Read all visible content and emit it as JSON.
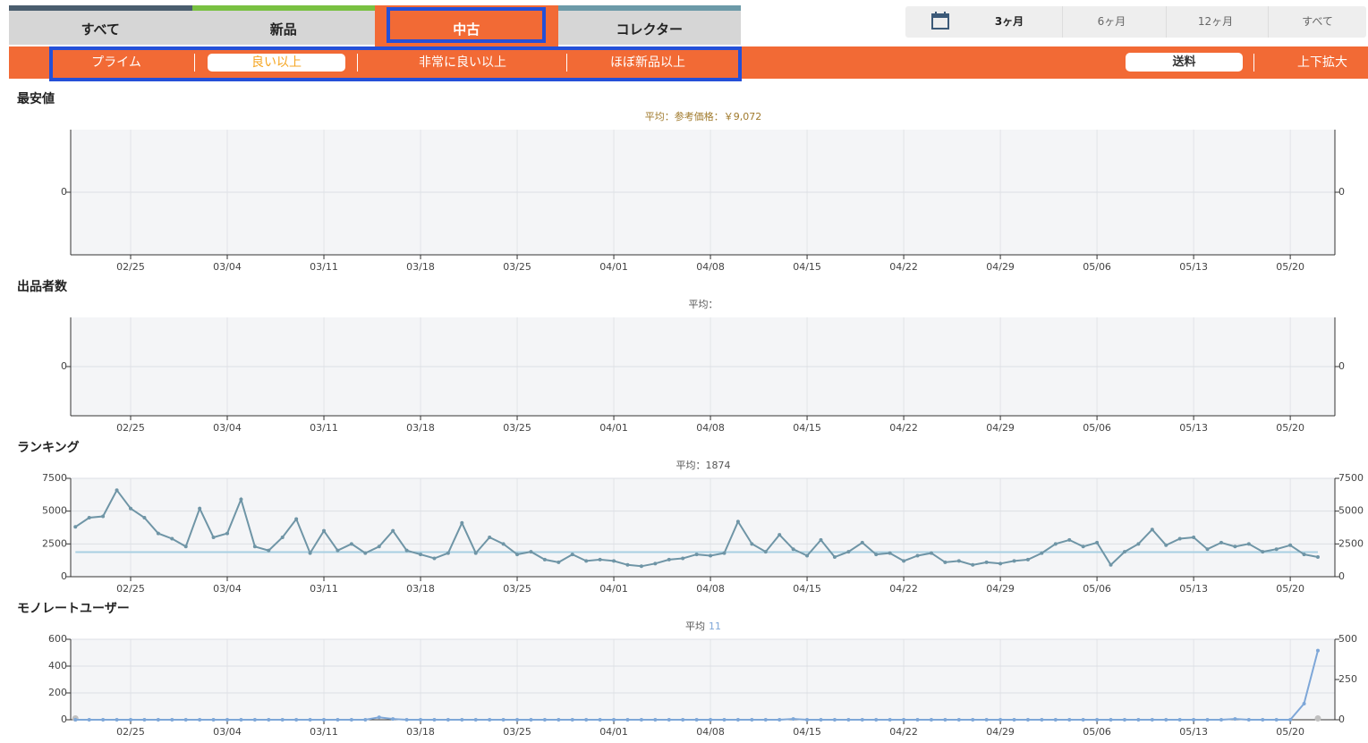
{
  "tabs": [
    "すべて",
    "新品",
    "中古",
    "コレクター"
  ],
  "periods": [
    "3ヶ月",
    "6ヶ月",
    "12ヶ月",
    "すべて"
  ],
  "filters": [
    "プライム",
    "良い以上",
    "非常に良い以上",
    "ほぼ新品以上"
  ],
  "options": [
    "送料",
    "上下拡大"
  ],
  "chart_data": [
    {
      "type": "line",
      "title": "最安値",
      "subtitle": "平均：参考価格：￥9,072",
      "xticks": [
        "02/25",
        "03/04",
        "03/11",
        "03/18",
        "03/25",
        "04/01",
        "04/08",
        "04/15",
        "04/22",
        "04/29",
        "05/06",
        "05/13",
        "05/20"
      ],
      "yticks": [
        0
      ],
      "y2ticks": [
        0
      ],
      "grid": true,
      "series": []
    },
    {
      "type": "line",
      "title": "出品者数",
      "subtitle": "平均：",
      "xticks": [
        "02/25",
        "03/04",
        "03/11",
        "03/18",
        "03/25",
        "04/01",
        "04/08",
        "04/15",
        "04/22",
        "04/29",
        "05/06",
        "05/13",
        "05/20"
      ],
      "yticks": [
        0
      ],
      "y2ticks": [
        0
      ],
      "grid": true,
      "series": []
    },
    {
      "type": "line",
      "title": "ランキング",
      "average_label": "平均：",
      "average": 1874,
      "average_color": "#a9d0e2",
      "xticks": [
        "02/25",
        "03/04",
        "03/11",
        "03/18",
        "03/25",
        "04/01",
        "04/08",
        "04/15",
        "04/22",
        "04/29",
        "05/06",
        "05/13",
        "05/20"
      ],
      "ylim": [
        0,
        7500
      ],
      "yticks": [
        0,
        2500,
        5000,
        7500
      ],
      "y2lim": [
        0,
        7500
      ],
      "y2ticks": [
        0,
        2500,
        5000,
        7500
      ],
      "grid": true,
      "series": [
        {
          "color": "#6f95a6",
          "x": [
            "02/21",
            "02/22",
            "02/23",
            "02/24",
            "02/25",
            "02/26",
            "02/27",
            "02/28",
            "03/01",
            "03/02",
            "03/03",
            "03/04",
            "03/05",
            "03/06",
            "03/07",
            "03/08",
            "03/09",
            "03/10",
            "03/11",
            "03/12",
            "03/13",
            "03/14",
            "03/15",
            "03/16",
            "03/17",
            "03/18",
            "03/19",
            "03/20",
            "03/21",
            "03/22",
            "03/23",
            "03/24",
            "03/25",
            "03/26",
            "03/27",
            "03/28",
            "03/29",
            "03/30",
            "03/31",
            "04/01",
            "04/02",
            "04/03",
            "04/04",
            "04/05",
            "04/06",
            "04/07",
            "04/08",
            "04/09",
            "04/10",
            "04/11",
            "04/12",
            "04/13",
            "04/14",
            "04/15",
            "04/16",
            "04/17",
            "04/18",
            "04/19",
            "04/20",
            "04/21",
            "04/22",
            "04/23",
            "04/24",
            "04/25",
            "04/26",
            "04/27",
            "04/28",
            "04/29",
            "04/30",
            "05/01",
            "05/02",
            "05/03",
            "05/04",
            "05/05",
            "05/06",
            "05/07",
            "05/08",
            "05/09",
            "05/10",
            "05/11",
            "05/12",
            "05/13",
            "05/14",
            "05/15",
            "05/16",
            "05/17",
            "05/18",
            "05/19",
            "05/20",
            "05/21",
            "05/22"
          ],
          "values": [
            3800,
            4500,
            4600,
            6600,
            5200,
            4500,
            3300,
            2900,
            2300,
            5200,
            3000,
            3300,
            5900,
            2300,
            2000,
            3000,
            4400,
            1800,
            3500,
            2000,
            2500,
            1800,
            2300,
            3500,
            2000,
            1700,
            1400,
            1800,
            4100,
            1800,
            3000,
            2500,
            1700,
            1900,
            1300,
            1100,
            1700,
            1200,
            1300,
            1200,
            900,
            800,
            1000,
            1300,
            1400,
            1700,
            1600,
            1800,
            4200,
            2500,
            1900,
            3200,
            2100,
            1600,
            2800,
            1500,
            1900,
            2600,
            1700,
            1800,
            1200,
            1600,
            1800,
            1100,
            1200,
            900,
            1100,
            1000,
            1200,
            1300,
            1800,
            2500,
            2800,
            2300,
            2600,
            900,
            1900,
            2500,
            3600,
            2400,
            2900,
            3000,
            2100,
            2600,
            2300,
            2500,
            1900,
            2100,
            2400,
            1700,
            1500
          ]
        }
      ]
    },
    {
      "type": "line",
      "title": "モノレートユーザー",
      "average_label": "平均",
      "average": 11,
      "average_color": "#7ea7d8",
      "xticks": [
        "02/25",
        "03/04",
        "03/11",
        "03/18",
        "03/25",
        "04/01",
        "04/08",
        "04/15",
        "04/22",
        "04/29",
        "05/06",
        "05/13",
        "05/20"
      ],
      "ylim": [
        0,
        600
      ],
      "yticks": [
        0,
        200,
        400,
        600
      ],
      "y2lim": [
        0,
        500
      ],
      "y2ticks": [
        0,
        250,
        500
      ],
      "grid": true,
      "series": [
        {
          "color": "#c0c0c0",
          "x": [
            "02/21",
            "05/22"
          ],
          "values": [
            10,
            10
          ]
        },
        {
          "color": "#7ea7d8",
          "axis": "y2",
          "x": [
            "02/21",
            "02/22",
            "02/23",
            "02/24",
            "02/25",
            "02/26",
            "02/27",
            "02/28",
            "03/01",
            "03/02",
            "03/03",
            "03/04",
            "03/05",
            "03/06",
            "03/07",
            "03/08",
            "03/09",
            "03/10",
            "03/11",
            "03/12",
            "03/13",
            "03/14",
            "03/15",
            "03/16",
            "03/17",
            "03/18",
            "03/19",
            "03/20",
            "03/21",
            "03/22",
            "03/23",
            "03/24",
            "03/25",
            "03/26",
            "03/27",
            "03/28",
            "03/29",
            "03/30",
            "03/31",
            "04/01",
            "04/02",
            "04/03",
            "04/04",
            "04/05",
            "04/06",
            "04/07",
            "04/08",
            "04/09",
            "04/10",
            "04/11",
            "04/12",
            "04/13",
            "04/14",
            "04/15",
            "04/16",
            "04/17",
            "04/18",
            "04/19",
            "04/20",
            "04/21",
            "04/22",
            "04/23",
            "04/24",
            "04/25",
            "04/26",
            "04/27",
            "04/28",
            "04/29",
            "04/30",
            "05/01",
            "05/02",
            "05/03",
            "05/04",
            "05/05",
            "05/06",
            "05/07",
            "05/08",
            "05/09",
            "05/10",
            "05/11",
            "05/12",
            "05/13",
            "05/14",
            "05/15",
            "05/16",
            "05/17",
            "05/18",
            "05/19",
            "05/20",
            "05/21",
            "05/22"
          ],
          "values": [
            0,
            0,
            0,
            0,
            0,
            0,
            0,
            0,
            0,
            0,
            0,
            0,
            0,
            0,
            0,
            0,
            0,
            0,
            0,
            0,
            0,
            0,
            15,
            5,
            0,
            0,
            0,
            0,
            0,
            0,
            0,
            0,
            0,
            0,
            0,
            0,
            0,
            0,
            0,
            0,
            0,
            0,
            0,
            0,
            0,
            0,
            0,
            0,
            0,
            0,
            0,
            0,
            5,
            0,
            0,
            0,
            0,
            0,
            0,
            0,
            0,
            0,
            0,
            0,
            0,
            0,
            0,
            0,
            0,
            0,
            0,
            0,
            0,
            0,
            0,
            0,
            0,
            0,
            0,
            0,
            0,
            0,
            0,
            0,
            5,
            0,
            0,
            0,
            0,
            100,
            430
          ]
        }
      ]
    }
  ]
}
